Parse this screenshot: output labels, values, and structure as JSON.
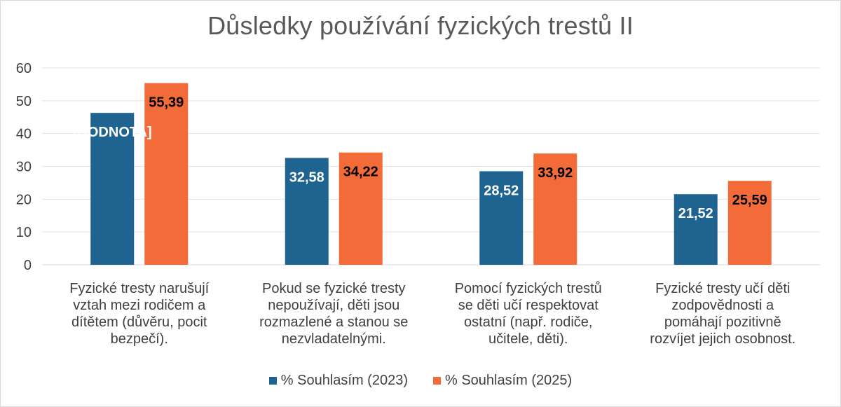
{
  "chart_data": {
    "type": "bar",
    "title": "Důsledky používání fyzických trestů II",
    "xlabel": "",
    "ylabel": "",
    "ylim": [
      0,
      60
    ],
    "yticks": [
      0,
      10,
      20,
      30,
      40,
      50,
      60
    ],
    "grid": true,
    "legend_position": "bottom",
    "categories": [
      [
        "Fyzické tresty narušují",
        "vztah mezi rodičem a",
        "dítětem (důvěru, pocit",
        "bezpečí)."
      ],
      [
        "Pokud se fyzické tresty",
        "nepoužívají, děti jsou",
        "rozmazlené a stanou se",
        "nezvladatelnými."
      ],
      [
        "Pomocí fyzických trestů",
        "se děti učí respektovat",
        "ostatní (např. rodiče,",
        "učitele, děti)."
      ],
      [
        "Fyzické tresty učí děti",
        "zodpovědnosti a",
        "pomáhají pozitivně",
        "rozvíjet jejich osobnost."
      ]
    ],
    "series": [
      {
        "name": "% Souhlasím (2023)",
        "color": "#1f6391",
        "values": [
          46.3,
          32.58,
          28.52,
          21.52
        ],
        "labels": [
          "[HODNOTA]",
          "32,58",
          "28,52",
          "21,52"
        ],
        "label_color": "#ffffff"
      },
      {
        "name": "% Souhlasím (2025)",
        "color": "#f26b38",
        "values": [
          55.39,
          34.22,
          33.92,
          25.59
        ],
        "labels": [
          "55,39",
          "34,22",
          "33,92",
          "25,59"
        ],
        "label_color": "#000000"
      }
    ]
  }
}
